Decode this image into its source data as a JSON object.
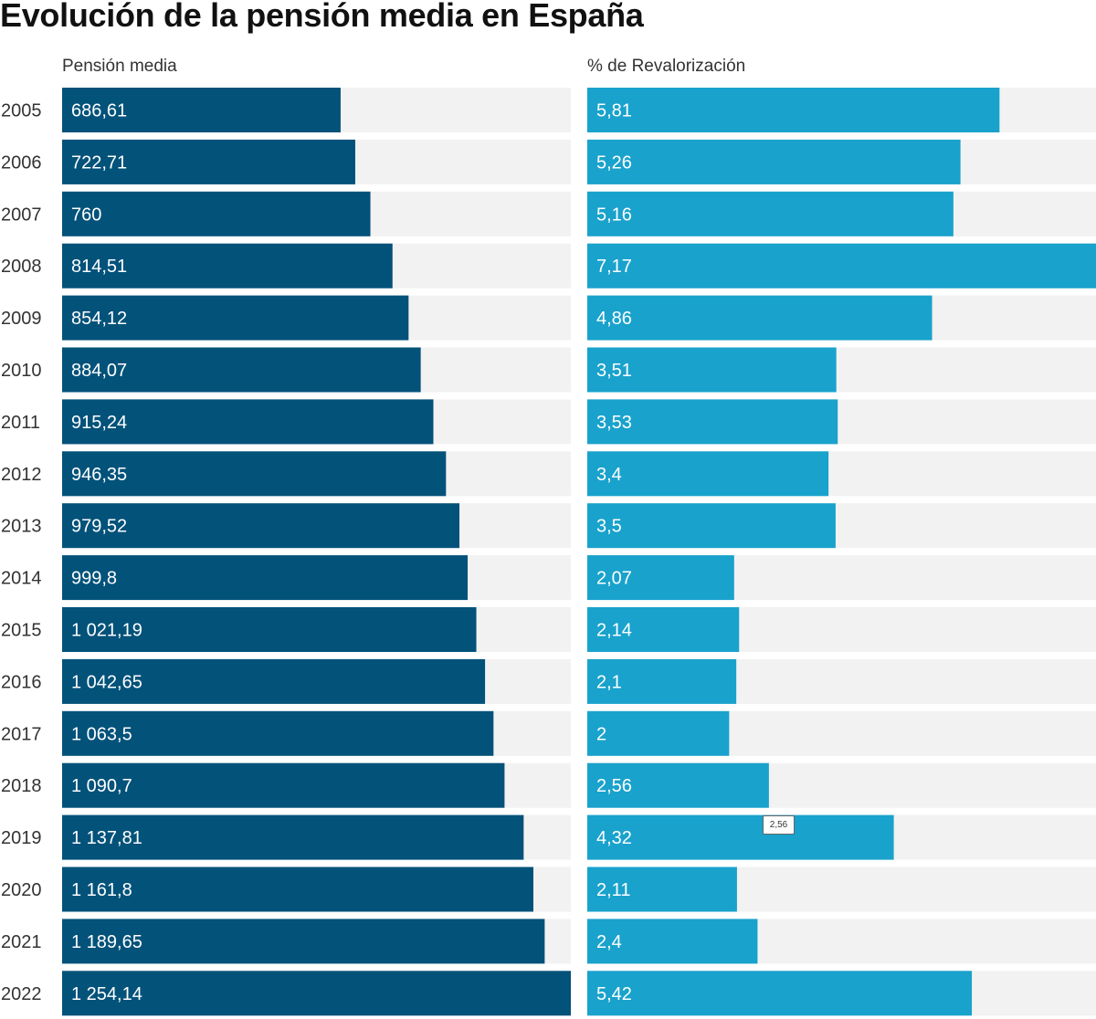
{
  "chart_data": [
    {
      "type": "bar",
      "orientation": "horizontal",
      "title": "Evolución de la pensión media en España",
      "column_label": "Pensión media",
      "categories": [
        "2005",
        "2006",
        "2007",
        "2008",
        "2009",
        "2010",
        "2011",
        "2012",
        "2013",
        "2014",
        "2015",
        "2016",
        "2017",
        "2018",
        "2019",
        "2020",
        "2021",
        "2022"
      ],
      "values": [
        686.61,
        722.71,
        760,
        814.51,
        854.12,
        884.07,
        915.24,
        946.35,
        979.52,
        999.8,
        1021.19,
        1042.65,
        1063.5,
        1090.7,
        1137.81,
        1161.8,
        1189.65,
        1254.14
      ],
      "labels": [
        "686,61",
        "722,71",
        "760",
        "814,51",
        "854,12",
        "884,07",
        "915,24",
        "946,35",
        "979,52",
        "999,8",
        "1 021,19",
        "1 042,65",
        "1 063,5",
        "1 090,7",
        "1 137,81",
        "1 161,8",
        "1 189,65",
        "1 254,14"
      ],
      "xlim": [
        0,
        1254.14
      ],
      "color": "#03527a",
      "background": "#f2f2f2"
    },
    {
      "type": "bar",
      "orientation": "horizontal",
      "column_label": "% de Revalorización",
      "categories": [
        "2005",
        "2006",
        "2007",
        "2008",
        "2009",
        "2010",
        "2011",
        "2012",
        "2013",
        "2014",
        "2015",
        "2016",
        "2017",
        "2018",
        "2019",
        "2020",
        "2021",
        "2022"
      ],
      "values": [
        5.81,
        5.26,
        5.16,
        7.17,
        4.86,
        3.51,
        3.53,
        3.4,
        3.5,
        2.07,
        2.14,
        2.1,
        2,
        2.56,
        4.32,
        2.11,
        2.4,
        5.42
      ],
      "labels": [
        "5,81",
        "5,26",
        "5,16",
        "7,17",
        "4,86",
        "3,51",
        "3,53",
        "3,4",
        "3,5",
        "2,07",
        "2,14",
        "2,1",
        "2",
        "2,56",
        "4,32",
        "2,11",
        "2,4",
        "5,42"
      ],
      "xlim": [
        0,
        7.17
      ],
      "color": "#19a2cc",
      "background": "#f2f2f2",
      "tooltip": "2,56"
    }
  ]
}
